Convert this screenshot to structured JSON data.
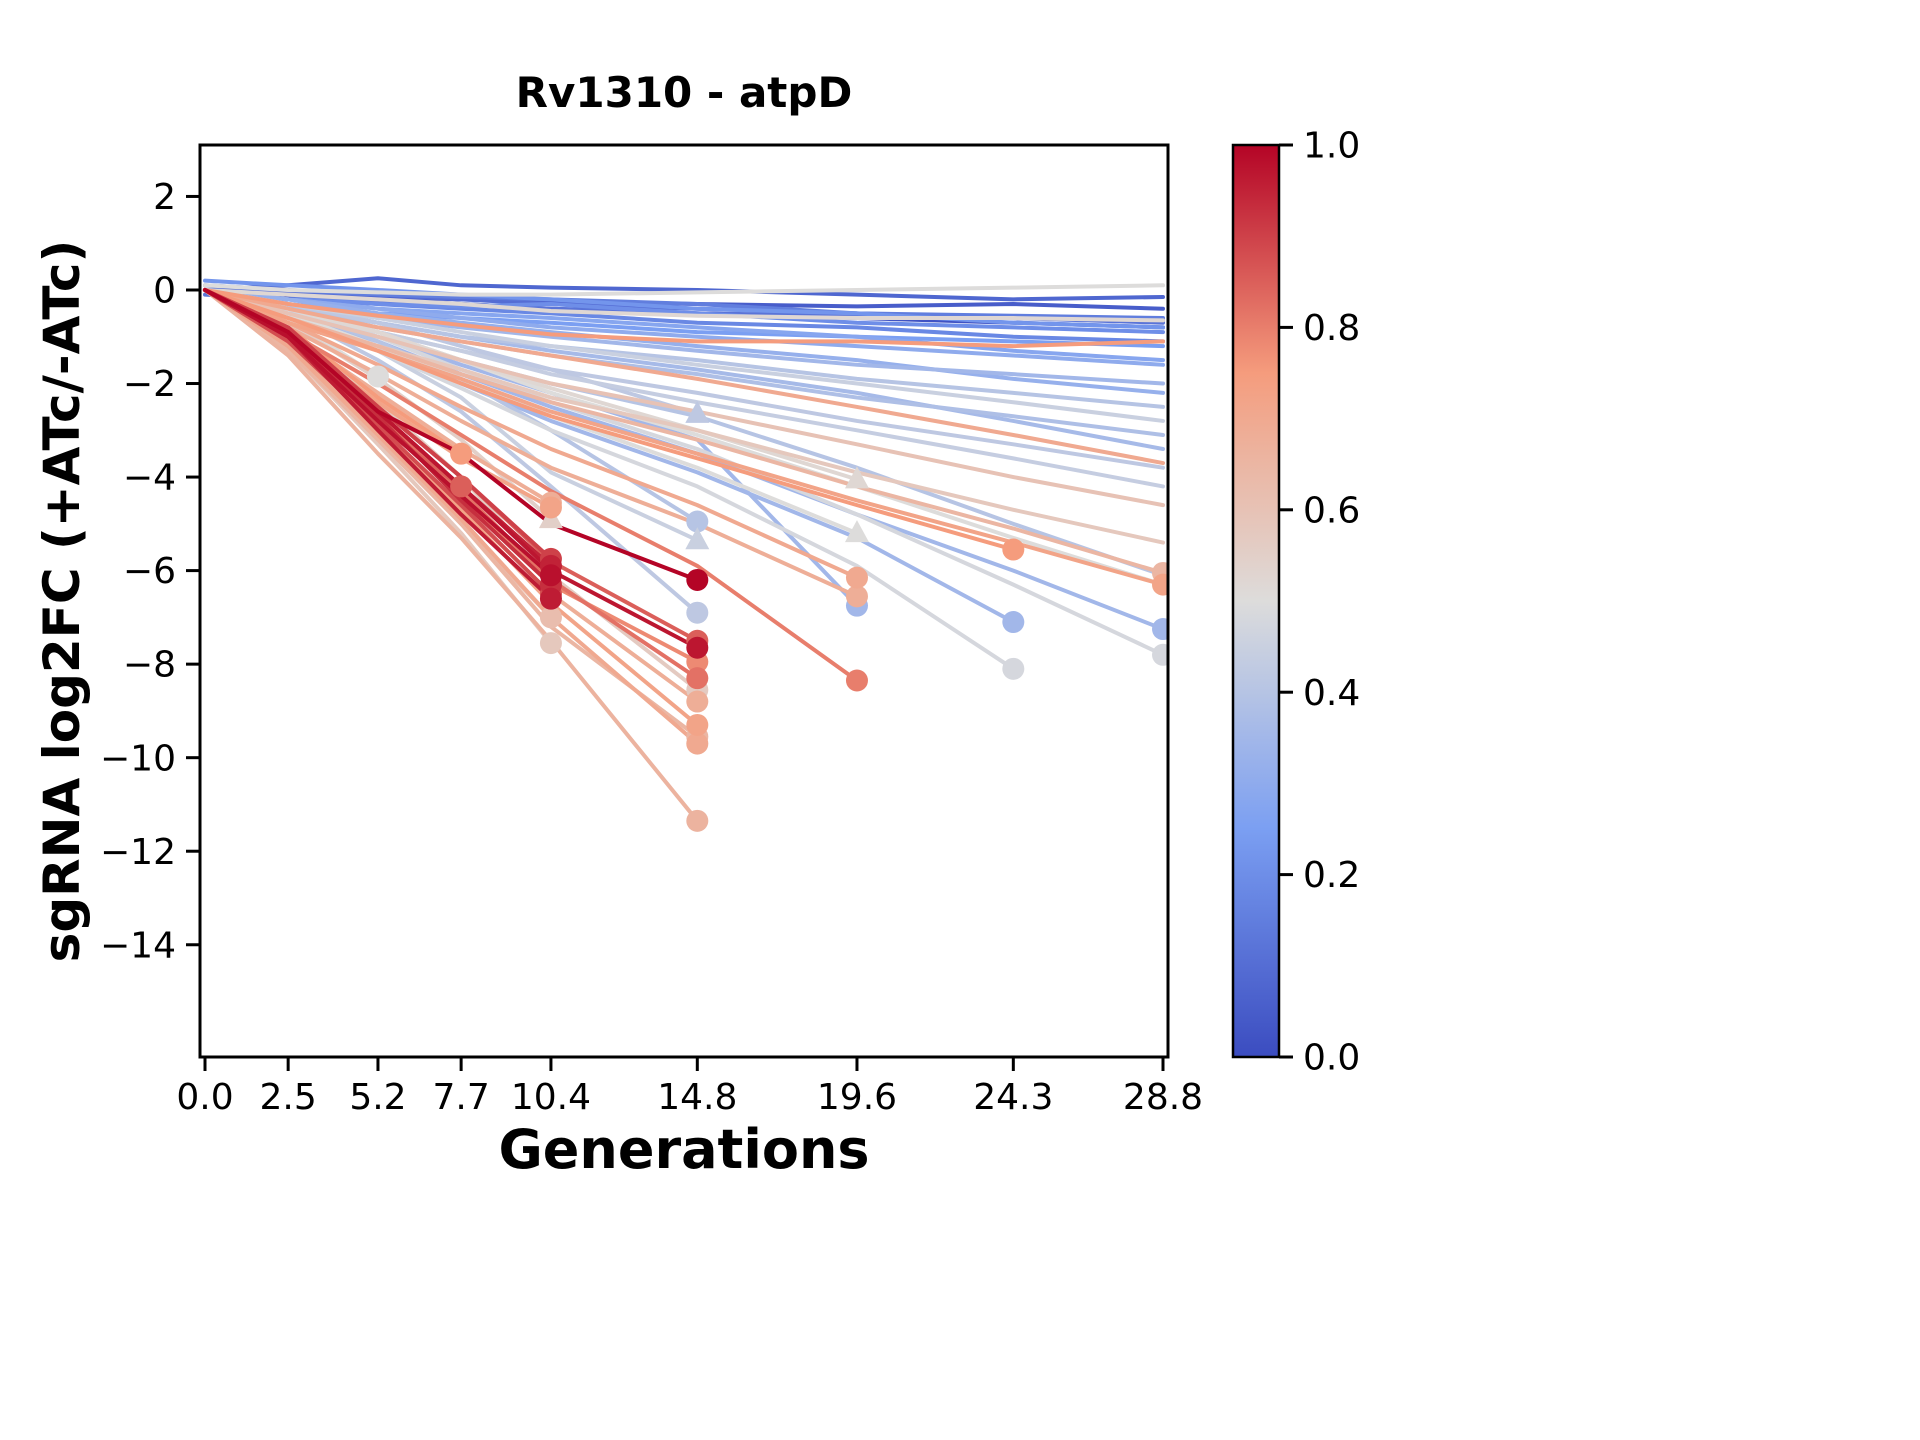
{
  "chart_data": {
    "type": "line",
    "title": "Rv1310 - atpD",
    "xlabel": "Generations",
    "ylabel": "sgRNA log2FC (+ATc/-ATc)",
    "xlim": [
      -0.15,
      28.95
    ],
    "ylim": [
      -16.4,
      3.1
    ],
    "grid": false,
    "x_ticks": [
      0.0,
      2.5,
      5.2,
      7.7,
      10.4,
      14.8,
      19.6,
      24.3,
      28.8
    ],
    "y_ticks": [
      2,
      0,
      -2,
      -4,
      -6,
      -8,
      -10,
      -12,
      -14
    ],
    "colorbar": {
      "ticks": [
        1.0,
        0.8,
        0.6,
        0.4,
        0.2,
        0.0
      ],
      "colormap": "coolwarm"
    },
    "colormap_anchors": [
      [
        0.0,
        "#3b4cc0"
      ],
      [
        0.25,
        "#7b9ff2"
      ],
      [
        0.5,
        "#dddcdb"
      ],
      [
        0.75,
        "#f59c7d"
      ],
      [
        1.0,
        "#b40426"
      ]
    ],
    "x_grid": [
      0,
      2.5,
      5.2,
      7.7,
      10.4,
      14.8,
      19.6,
      24.3,
      28.8
    ],
    "series": [
      {
        "c": 0.05,
        "y": [
          0,
          -0.1,
          -0.15,
          -0.2,
          -0.25,
          -0.3,
          -0.35,
          -0.3,
          -0.4
        ],
        "m": null
      },
      {
        "c": 0.1,
        "y": [
          0,
          -0.05,
          -0.1,
          -0.2,
          -0.3,
          -0.4,
          -0.5,
          -0.6,
          -0.65
        ],
        "m": null
      },
      {
        "c": 0.15,
        "y": [
          0.1,
          0,
          -0.1,
          -0.15,
          -0.2,
          -0.3,
          -0.5,
          -0.55,
          -0.6
        ],
        "m": null
      },
      {
        "c": 0.2,
        "y": [
          0,
          -0.2,
          -0.3,
          -0.35,
          -0.3,
          -0.5,
          -0.7,
          -0.8,
          -0.9
        ],
        "m": null
      },
      {
        "c": 0.08,
        "y": [
          0,
          0.1,
          0.25,
          0.1,
          0.05,
          0,
          -0.1,
          -0.2,
          -0.15
        ],
        "m": null
      },
      {
        "c": 0.12,
        "y": [
          -0.1,
          -0.2,
          -0.25,
          -0.3,
          -0.4,
          -0.5,
          -0.55,
          -0.6,
          -0.7
        ],
        "m": null
      },
      {
        "c": 0.25,
        "y": [
          0,
          -0.3,
          -0.5,
          -0.6,
          -0.7,
          -0.9,
          -1.0,
          -1.1,
          -1.2
        ],
        "m": null
      },
      {
        "c": 0.3,
        "y": [
          0,
          -0.2,
          -0.4,
          -0.6,
          -0.8,
          -1.0,
          -1.2,
          -1.4,
          -1.6
        ],
        "m": null
      },
      {
        "c": 0.18,
        "y": [
          0,
          -0.1,
          -0.3,
          -0.4,
          -0.5,
          -0.7,
          -0.8,
          -1.0,
          -1.1
        ],
        "m": null
      },
      {
        "c": 0.35,
        "y": [
          0,
          -0.3,
          -0.6,
          -0.8,
          -1.0,
          -1.3,
          -1.6,
          -1.8,
          -2.0
        ],
        "m": null
      },
      {
        "c": 0.4,
        "y": [
          0,
          -0.4,
          -0.7,
          -1.0,
          -1.2,
          -1.5,
          -1.9,
          -2.2,
          -2.5
        ],
        "m": null
      },
      {
        "c": 0.32,
        "y": [
          0,
          -0.2,
          -0.5,
          -0.7,
          -0.9,
          -1.2,
          -1.5,
          -1.9,
          -2.2
        ],
        "m": null
      },
      {
        "c": 0.45,
        "y": [
          0,
          -0.3,
          -0.6,
          -0.9,
          -1.2,
          -1.6,
          -2.0,
          -2.4,
          -2.8
        ],
        "m": null
      },
      {
        "c": 0.38,
        "y": [
          0,
          -0.4,
          -0.8,
          -1.1,
          -1.4,
          -1.8,
          -2.3,
          -2.7,
          -3.1
        ],
        "m": null
      },
      {
        "c": 0.42,
        "y": [
          0,
          -0.5,
          -0.9,
          -1.3,
          -1.7,
          -2.2,
          -2.8,
          -3.3,
          -3.8
        ],
        "m": null
      },
      {
        "c": 0.28,
        "y": [
          0,
          -0.2,
          -0.4,
          -0.5,
          -0.6,
          -0.8,
          -1.0,
          -1.3,
          -1.5
        ],
        "m": null
      },
      {
        "c": 0.22,
        "y": [
          0.2,
          0.1,
          0,
          -0.1,
          -0.2,
          -0.4,
          -0.5,
          -0.7,
          -0.8
        ],
        "m": null
      },
      {
        "c": 0.02,
        "y": [
          0,
          -0.15,
          -0.2,
          -0.3,
          -0.4,
          -0.5,
          -0.6,
          -0.7,
          -0.8
        ],
        "m": null
      },
      {
        "c": 0.5,
        "y": [
          0.1,
          0,
          -0.05,
          -0.1,
          -0.1,
          -0.05,
          0,
          0.05,
          0.1
        ],
        "m": null
      },
      {
        "c": 0.52,
        "y": [
          0,
          -0.1,
          -0.2,
          -0.3,
          -0.45,
          -0.55,
          -0.6,
          -0.6,
          -0.65
        ],
        "m": null
      },
      {
        "c": 0.36,
        "y": [
          0,
          -0.35,
          -0.7,
          -1.0,
          -1.3,
          -1.7,
          -2.2,
          -2.8,
          -3.4
        ],
        "m": null
      },
      {
        "c": 0.44,
        "y": [
          0,
          -0.4,
          -0.9,
          -1.3,
          -1.8,
          -2.4,
          -3.0,
          -3.6,
          -4.2
        ],
        "m": null
      },
      {
        "c": 0.4,
        "y": [
          0,
          -0.5,
          -1.0,
          -1.5,
          -2.0,
          -2.7,
          -3.8,
          -5.0,
          -6.1
        ],
        "m": null
      },
      {
        "c": 0.35,
        "y": [
          0,
          -0.5,
          -1.1,
          -1.8,
          -2.5,
          -3.5,
          -4.8,
          -6.0,
          -7.25
        ],
        "m": "circle"
      },
      {
        "c": 0.48,
        "y": [
          0,
          -0.4,
          -1.0,
          -1.7,
          -2.4,
          -3.4,
          -4.8,
          -6.3,
          -7.8
        ],
        "m": "circle"
      },
      {
        "c": 0.5,
        "y": [
          0,
          -0.4,
          -0.9,
          -1.5,
          -2.2,
          -3.1,
          -4.2,
          -5.3,
          -6.3
        ],
        "m": null
      },
      {
        "c": 0.75,
        "y": [
          0,
          -0.3,
          -0.55,
          -0.75,
          -0.95,
          -1.1,
          -1.1,
          -1.2,
          -1.1
        ],
        "m": null
      },
      {
        "c": 0.7,
        "y": [
          0,
          -0.4,
          -0.8,
          -1.1,
          -1.4,
          -1.9,
          -2.5,
          -3.1,
          -3.7
        ],
        "m": null
      },
      {
        "c": 0.65,
        "y": [
          0,
          -0.6,
          -1.2,
          -1.8,
          -2.4,
          -3.2,
          -4.2,
          -5.1,
          -6.05
        ],
        "m": "circle"
      },
      {
        "c": 0.72,
        "y": [
          0,
          -0.7,
          -1.3,
          -1.9,
          -2.6,
          -3.5,
          -4.5,
          -5.4,
          -6.3
        ],
        "m": "circle"
      },
      {
        "c": 0.6,
        "y": [
          0,
          -0.5,
          -1.0,
          -1.5,
          -2.0,
          -2.6,
          -3.3,
          -4.0,
          -4.6
        ],
        "m": null
      },
      {
        "c": 0.58,
        "y": [
          0,
          -0.6,
          -1.2,
          -1.7,
          -2.3,
          -3.0,
          -3.9,
          -4.7,
          -5.4
        ],
        "m": null
      },
      {
        "c": 0.75,
        "y": [
          0,
          -0.6,
          -1.3,
          -2.0,
          -2.7,
          -3.6,
          -4.6,
          -5.55
        ],
        "m": "circle"
      },
      {
        "c": 0.35,
        "y": [
          0,
          -0.5,
          -1.2,
          -2.0,
          -2.8,
          -3.9,
          -5.3,
          -7.1
        ],
        "m": "circle"
      },
      {
        "c": 0.48,
        "y": [
          0,
          -0.5,
          -1.3,
          -2.1,
          -3.0,
          -4.2,
          -5.9,
          -8.1
        ],
        "m": "circle"
      },
      {
        "c": 0.7,
        "y": [
          0,
          -0.7,
          -1.6,
          -2.5,
          -3.4,
          -4.6,
          -6.15
        ],
        "m": "circle"
      },
      {
        "c": 0.68,
        "y": [
          0,
          -0.8,
          -1.8,
          -2.8,
          -3.8,
          -5.0,
          -6.55
        ],
        "m": "circle"
      },
      {
        "c": 0.35,
        "y": [
          0,
          -0.4,
          -1.0,
          -1.6,
          -2.2,
          -3.2,
          -6.75
        ],
        "m": "circle"
      },
      {
        "c": 0.8,
        "y": [
          0,
          -0.9,
          -2.0,
          -3.1,
          -4.3,
          -5.9,
          -8.35
        ],
        "m": "circle"
      },
      {
        "c": 0.42,
        "y": [
          0,
          -0.3,
          -0.7,
          -1.2,
          -1.7,
          -2.65
        ],
        "m": "triangle"
      },
      {
        "c": 0.52,
        "y": [
          0,
          -0.4,
          -0.9,
          -1.5,
          -2.1,
          -3.0,
          -4.05
        ],
        "m": "triangle"
      },
      {
        "c": 0.5,
        "y": [
          0,
          -0.5,
          -1.2,
          -1.9,
          -2.7,
          -3.8,
          -5.2
        ],
        "m": "triangle"
      },
      {
        "c": 0.55,
        "y": [
          0,
          -0.7,
          -1.9,
          -3.2,
          -4.9
        ],
        "m": "triangle"
      },
      {
        "c": 0.45,
        "y": [
          0,
          -0.5,
          -1.3,
          -2.3,
          -3.9,
          -5.35
        ],
        "m": "triangle"
      },
      {
        "c": 0.4,
        "y": [
          0,
          -0.4,
          -1.1,
          -1.9,
          -3.0,
          -4.95
        ],
        "m": "circle"
      },
      {
        "c": 1.0,
        "y": [
          0,
          -0.9,
          -2.6,
          -3.5,
          -5.0,
          -6.2
        ],
        "m": "circle"
      },
      {
        "c": 0.42,
        "y": [
          0,
          -0.5,
          -1.5,
          -2.6,
          -4.2,
          -6.9
        ],
        "m": "circle"
      },
      {
        "c": 0.85,
        "y": [
          0,
          -1.0,
          -2.5,
          -4.0,
          -5.8,
          -7.5
        ],
        "m": "circle"
      },
      {
        "c": 0.97,
        "y": [
          0,
          -0.9,
          -2.6,
          -4.2,
          -6.0,
          -7.65
        ],
        "m": "circle"
      },
      {
        "c": 0.78,
        "y": [
          0,
          -1.1,
          -2.8,
          -4.4,
          -6.3,
          -7.95
        ],
        "m": "circle"
      },
      {
        "c": 0.82,
        "y": [
          0,
          -1.0,
          -2.7,
          -4.3,
          -6.2,
          -8.3
        ],
        "m": "circle"
      },
      {
        "c": 0.57,
        "y": [
          0,
          -0.9,
          -2.4,
          -4.0,
          -6.1,
          -8.55
        ],
        "m": "circle"
      },
      {
        "c": 0.68,
        "y": [
          0,
          -1.2,
          -3.0,
          -4.6,
          -6.5,
          -8.8
        ],
        "m": "circle"
      },
      {
        "c": 0.72,
        "y": [
          0,
          -1.1,
          -2.9,
          -4.7,
          -6.7,
          -9.3
        ],
        "m": "circle"
      },
      {
        "c": 0.65,
        "y": [
          0,
          -1.3,
          -3.2,
          -5.0,
          -7.2,
          -9.55
        ],
        "m": "circle"
      },
      {
        "c": 0.7,
        "y": [
          0,
          -1.2,
          -3.1,
          -4.9,
          -7.0,
          -9.7
        ],
        "m": "circle"
      },
      {
        "c": 0.66,
        "y": [
          0,
          -1.4,
          -3.5,
          -5.3,
          -7.5,
          -11.35
        ],
        "m": "circle"
      },
      {
        "c": 0.68,
        "y": [
          0,
          -0.9,
          -2.2,
          -3.4,
          -4.55
        ],
        "m": "circle"
      },
      {
        "c": 0.72,
        "y": [
          0,
          -1.0,
          -2.4,
          -3.6,
          -4.65
        ],
        "m": "circle"
      },
      {
        "c": 0.9,
        "y": [
          0,
          -0.8,
          -2.5,
          -4.0,
          -5.75
        ],
        "m": "circle"
      },
      {
        "c": 0.95,
        "y": [
          0,
          -0.9,
          -2.6,
          -4.2,
          -5.9
        ],
        "m": "circle"
      },
      {
        "c": 0.98,
        "y": [
          0,
          -1.0,
          -2.8,
          -4.4,
          -6.1
        ],
        "m": "circle"
      },
      {
        "c": 0.93,
        "y": [
          0,
          -0.9,
          -2.7,
          -4.5,
          -6.3
        ],
        "m": "circle"
      },
      {
        "c": 0.88,
        "y": [
          0,
          -1.1,
          -2.9,
          -4.6,
          -6.5
        ],
        "m": "circle"
      },
      {
        "c": 0.96,
        "y": [
          0,
          -1.0,
          -3.0,
          -4.8,
          -6.6
        ],
        "m": "circle"
      },
      {
        "c": 0.62,
        "y": [
          0,
          -1.2,
          -3.1,
          -5.0,
          -7.0
        ],
        "m": "circle"
      },
      {
        "c": 0.58,
        "y": [
          0,
          -1.3,
          -3.3,
          -5.2,
          -7.55
        ],
        "m": "circle"
      },
      {
        "c": 0.75,
        "y": [
          0,
          -0.8,
          -2.3,
          -3.5
        ],
        "m": "circle"
      },
      {
        "c": 0.85,
        "y": [
          0,
          -1.0,
          -2.9,
          -4.2
        ],
        "m": "circle"
      },
      {
        "c": 0.5,
        "y": [
          0,
          -0.6,
          -1.85
        ],
        "m": "circle"
      }
    ]
  }
}
